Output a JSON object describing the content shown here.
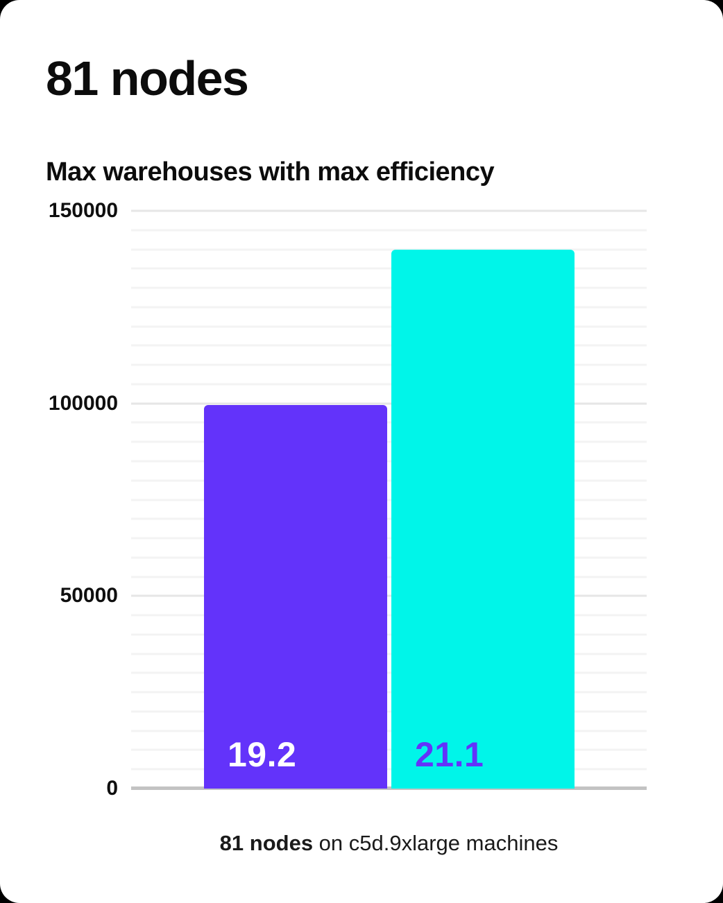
{
  "header": {
    "title": "81 nodes",
    "subtitle": "Max warehouses with max efficiency"
  },
  "chart_data": {
    "type": "bar",
    "title": "81 nodes",
    "subtitle": "Max warehouses with max efficiency",
    "categories": [
      "19.2",
      "21.1"
    ],
    "values": [
      99500,
      140000
    ],
    "bar_labels": [
      "19.2",
      "21.1"
    ],
    "bar_colors": [
      "#6333fa",
      "#00f5e9"
    ],
    "bar_label_colors": [
      "#ffffff",
      "#6333fa"
    ],
    "xlabel": "",
    "ylabel": "",
    "ylim": [
      0,
      150000
    ],
    "yticks": [
      0,
      50000,
      100000,
      150000
    ],
    "ytick_labels": [
      "0",
      "50000",
      "100000",
      "150000"
    ],
    "minor_gridline_step": 5000,
    "major_gridline_step": 50000,
    "gridlines": "horizontal",
    "legend": "none",
    "grid_colors": {
      "major": "#e6e6e6",
      "minor": "#f3f3f3",
      "axis": "#c3c3c3"
    }
  },
  "caption": {
    "bold_text": "81 nodes",
    "regular_text": " on c5d.9xlarge machines"
  }
}
